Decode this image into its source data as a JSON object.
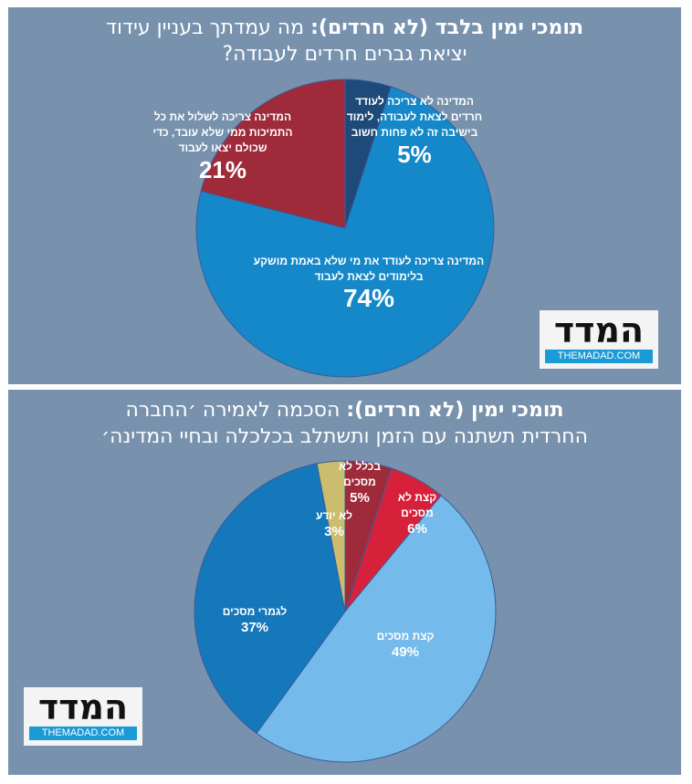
{
  "chart_data": [
    {
      "type": "pie",
      "title_bold": "תומכי ימין בלבד (לא חרדים):",
      "title_rest": " מה עמדתך בעניין עידוד",
      "title_line2": "יציאת גברים חרדים לעבודה?",
      "start": "12 o'clock",
      "direction": "clockwise",
      "slices": [
        {
          "label": "המדינה לא צריכה לעודד חרדים לצאת לעבודה, לימוד בישיבה זה לא פחות חשוב",
          "value": 5,
          "display": "5%",
          "color": "#1d4a78"
        },
        {
          "label": "המדינה צריכה לעודד את מי שלא באמת מושקע בלימודים לצאת לעבוד",
          "value": 74,
          "display": "74%",
          "color": "#1488c8"
        },
        {
          "label": "המדינה צריכה לשלול את כל התמיכות ממי שלא עובד, כדי שכולם יצאו לעבוד",
          "value": 21,
          "display": "21%",
          "color": "#9e2a3a"
        }
      ]
    },
    {
      "type": "pie",
      "title_bold": "תומכי ימין (לא חרדים):",
      "title_rest": " הסכמה לאמירה ׳החברה",
      "title_line2": "החרדית תשתנה עם הזמן ותשתלב בכלכלה ובחיי המדינה׳",
      "start": "12 o'clock",
      "direction": "clockwise",
      "slices": [
        {
          "label": "בכלל לא מסכים",
          "value": 5,
          "display": "5%",
          "color": "#9e2a3a"
        },
        {
          "label": "קצת לא מסכים",
          "value": 6,
          "display": "6%",
          "color": "#d7213a"
        },
        {
          "label": "קצת מסכים",
          "value": 49,
          "display": "49%",
          "color": "#74baea"
        },
        {
          "label": "לגמרי מסכים",
          "value": 37,
          "display": "37%",
          "color": "#1478bb"
        },
        {
          "label": "לא יודע",
          "value": 3,
          "display": "3%",
          "color": "#cbbd6e"
        }
      ]
    }
  ],
  "logo": {
    "hebrew": "המדד",
    "english": "THEMADAD.COM"
  },
  "colors": {
    "background": "#7892ad"
  }
}
